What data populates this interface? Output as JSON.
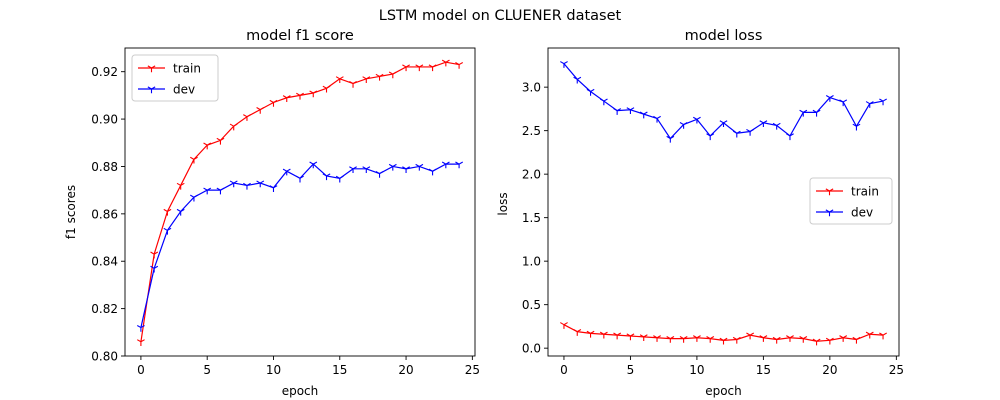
{
  "figure": {
    "suptitle": "LSTM model on CLUENER dataset"
  },
  "chart_data": [
    {
      "type": "line",
      "title": "model f1 score",
      "xlabel": "epoch",
      "ylabel": "f1 scores",
      "x": [
        0,
        1,
        2,
        3,
        4,
        5,
        6,
        7,
        8,
        9,
        10,
        11,
        12,
        13,
        14,
        15,
        16,
        17,
        18,
        19,
        20,
        21,
        22,
        23,
        24
      ],
      "xlim": [
        -1.2,
        25.2
      ],
      "ylim": [
        0.8,
        0.93
      ],
      "xticks": [
        0,
        5,
        10,
        15,
        20,
        25
      ],
      "yticks": [
        0.8,
        0.82,
        0.84,
        0.86,
        0.88,
        0.9,
        0.92
      ],
      "ytick_labels": [
        "0.80",
        "0.82",
        "0.84",
        "0.86",
        "0.88",
        "0.90",
        "0.92"
      ],
      "legend_position": "upper-left",
      "grid": false,
      "series": [
        {
          "name": "train",
          "color": "#ff0000",
          "marker": "tri_down",
          "values": [
            0.806,
            0.843,
            0.861,
            0.872,
            0.883,
            0.889,
            0.891,
            0.897,
            0.901,
            0.904,
            0.907,
            0.909,
            0.91,
            0.911,
            0.913,
            0.917,
            0.915,
            0.917,
            0.918,
            0.919,
            0.922,
            0.922,
            0.922,
            0.924,
            0.923
          ]
        },
        {
          "name": "dev",
          "color": "#0000ff",
          "marker": "tri_down",
          "values": [
            0.812,
            0.837,
            0.853,
            0.861,
            0.867,
            0.87,
            0.87,
            0.873,
            0.872,
            0.873,
            0.871,
            0.878,
            0.875,
            0.881,
            0.876,
            0.875,
            0.879,
            0.879,
            0.877,
            0.88,
            0.879,
            0.88,
            0.878,
            0.881,
            0.881
          ]
        }
      ]
    },
    {
      "type": "line",
      "title": "model loss",
      "xlabel": "epoch",
      "ylabel": "loss",
      "x": [
        0,
        1,
        2,
        3,
        4,
        5,
        6,
        7,
        8,
        9,
        10,
        11,
        12,
        13,
        14,
        15,
        16,
        17,
        18,
        19,
        20,
        21,
        22,
        23,
        24
      ],
      "xlim": [
        -1.2,
        25.2
      ],
      "ylim": [
        -0.09,
        3.45
      ],
      "xticks": [
        0,
        5,
        10,
        15,
        20,
        25
      ],
      "yticks": [
        0.0,
        0.5,
        1.0,
        1.5,
        2.0,
        2.5,
        3.0
      ],
      "ytick_labels": [
        "0.0",
        "0.5",
        "1.0",
        "1.5",
        "2.0",
        "2.5",
        "3.0"
      ],
      "legend_position": "center-right",
      "grid": false,
      "series": [
        {
          "name": "train",
          "color": "#ff0000",
          "marker": "tri_down",
          "values": [
            0.27,
            0.19,
            0.17,
            0.16,
            0.15,
            0.14,
            0.13,
            0.12,
            0.11,
            0.11,
            0.12,
            0.11,
            0.09,
            0.1,
            0.15,
            0.12,
            0.1,
            0.12,
            0.11,
            0.08,
            0.09,
            0.12,
            0.1,
            0.16,
            0.15
          ]
        },
        {
          "name": "dev",
          "color": "#0000ff",
          "marker": "tri_down",
          "values": [
            3.27,
            3.09,
            2.95,
            2.84,
            2.73,
            2.74,
            2.69,
            2.64,
            2.41,
            2.57,
            2.63,
            2.44,
            2.59,
            2.47,
            2.49,
            2.59,
            2.56,
            2.44,
            2.71,
            2.71,
            2.88,
            2.83,
            2.55,
            2.81,
            2.84
          ]
        }
      ]
    }
  ]
}
